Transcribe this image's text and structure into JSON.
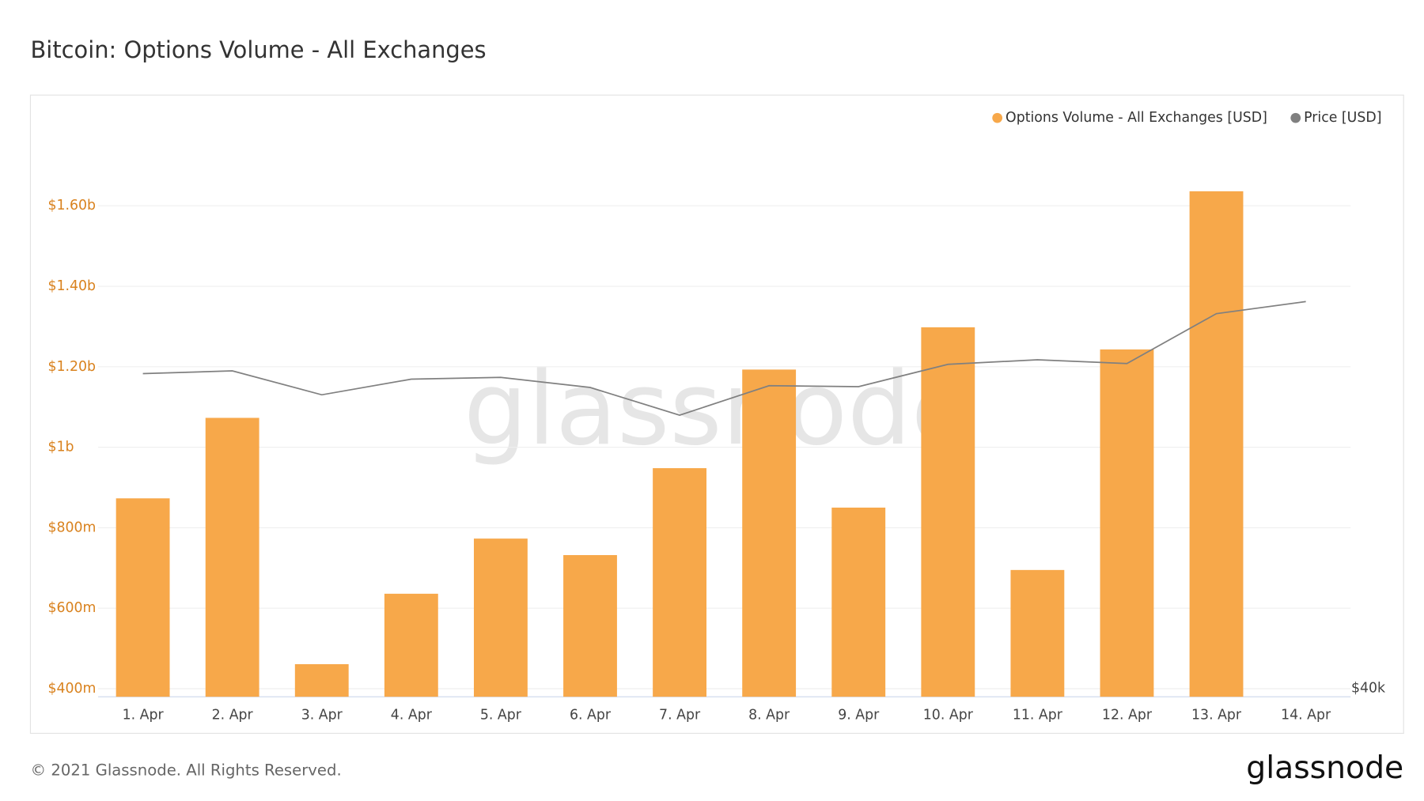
{
  "chart_data": {
    "type": "bar",
    "title": "Bitcoin: Options Volume - All Exchanges",
    "categories": [
      "1. Apr",
      "2. Apr",
      "3. Apr",
      "4. Apr",
      "5. Apr",
      "6. Apr",
      "7. Apr",
      "8. Apr",
      "9. Apr",
      "10. Apr",
      "11. Apr",
      "12. Apr",
      "13. Apr",
      "14. Apr"
    ],
    "series": [
      {
        "name": "Options Volume - All Exchanges [USD]",
        "color": "#f7a84a",
        "values": [
          873000000,
          1073000000,
          461000000,
          636000000,
          773000000,
          732000000,
          948000000,
          1193000000,
          850000000,
          1298000000,
          695000000,
          1243000000,
          1636000000,
          null
        ]
      },
      {
        "name": "Price [USD]",
        "color": "#808080",
        "axis": "y2",
        "values": [
          59320,
          59490,
          58020,
          58980,
          59090,
          58470,
          56770,
          58580,
          58520,
          59890,
          60170,
          59940,
          63000,
          63740
        ]
      }
    ],
    "ylim": [
      380000000,
      1800000000
    ],
    "yticks": [
      {
        "value": 400000000,
        "label": "$400m"
      },
      {
        "value": 600000000,
        "label": "$600m"
      },
      {
        "value": 800000000,
        "label": "$800m"
      },
      {
        "value": 1000000000,
        "label": "$1b"
      },
      {
        "value": 1200000000,
        "label": "$1.20b"
      },
      {
        "value": 1400000000,
        "label": "$1.40b"
      },
      {
        "value": 1600000000,
        "label": "$1.60b"
      }
    ],
    "y2lim": [
      39490,
      74560
    ],
    "y2ticks": [
      {
        "value": 40000,
        "label": "$40k"
      }
    ],
    "grid": true,
    "legend": "top-right",
    "watermark": "glassnode",
    "logo": "glassnode",
    "footer": "© 2021 Glassnode. All Rights Reserved."
  }
}
